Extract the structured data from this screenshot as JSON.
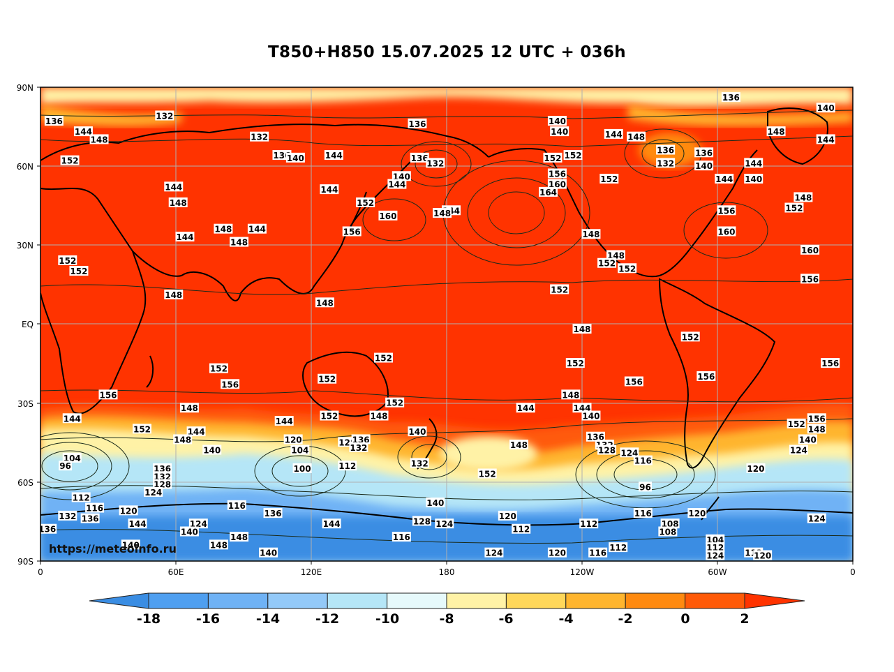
{
  "title": "T850+H850 15.07.2025 12 UTC + 036h",
  "watermark": "https://meteoinfo.ru",
  "lat_labels": [
    "90N",
    "60N",
    "30N",
    "EQ",
    "30S",
    "60S",
    "90S"
  ],
  "lon_labels": [
    "0",
    "60E",
    "120E",
    "180",
    "120W",
    "60W",
    "0"
  ],
  "colorbar": {
    "levels": [
      "-18",
      "-16",
      "-14",
      "-12",
      "-10",
      "-8",
      "-6",
      "-4",
      "-2",
      "0",
      "2"
    ],
    "colors": [
      "#3a8de3",
      "#4f9ff0",
      "#6fb2f5",
      "#93c9f8",
      "#b5e6f7",
      "#e6f9fb",
      "#fff2a6",
      "#ffd75a",
      "#ffb52e",
      "#ff8a10",
      "#ff5a08",
      "#ff3300"
    ]
  },
  "palette": {
    "warm": "#ff3300",
    "coast": "#000000",
    "grid": "#b0b0b0",
    "contour": "#1a2a1a"
  },
  "contour_labels": [
    {
      "t": "136",
      "lon": 6,
      "lat": 77
    },
    {
      "t": "144",
      "lon": 19,
      "lat": 73
    },
    {
      "t": "148",
      "lon": 26,
      "lat": 70
    },
    {
      "t": "152",
      "lon": 13,
      "lat": 62
    },
    {
      "t": "132",
      "lon": 55,
      "lat": 79
    },
    {
      "t": "132",
      "lon": 97,
      "lat": 71
    },
    {
      "t": "136",
      "lon": 107,
      "lat": 64
    },
    {
      "t": "140",
      "lon": 113,
      "lat": 63
    },
    {
      "t": "144",
      "lon": 130,
      "lat": 64
    },
    {
      "t": "136",
      "lon": 167,
      "lat": 76
    },
    {
      "t": "140",
      "lon": 229,
      "lat": 77
    },
    {
      "t": "140",
      "lon": 230,
      "lat": 73
    },
    {
      "t": "136",
      "lon": 306,
      "lat": 86
    },
    {
      "t": "140",
      "lon": 348,
      "lat": 82
    },
    {
      "t": "148",
      "lon": 326,
      "lat": 73
    },
    {
      "t": "144",
      "lon": 348,
      "lat": 70
    },
    {
      "t": "144",
      "lon": 254,
      "lat": 72
    },
    {
      "t": "148",
      "lon": 264,
      "lat": 71
    },
    {
      "t": "136",
      "lon": 168,
      "lat": 63
    },
    {
      "t": "132",
      "lon": 175,
      "lat": 61
    },
    {
      "t": "140",
      "lon": 160,
      "lat": 56
    },
    {
      "t": "144",
      "lon": 158,
      "lat": 53
    },
    {
      "t": "152",
      "lon": 144,
      "lat": 46
    },
    {
      "t": "160",
      "lon": 154,
      "lat": 41
    },
    {
      "t": "144",
      "lon": 182,
      "lat": 43
    },
    {
      "t": "148",
      "lon": 178,
      "lat": 42
    },
    {
      "t": "152",
      "lon": 227,
      "lat": 63
    },
    {
      "t": "152",
      "lon": 236,
      "lat": 64
    },
    {
      "t": "156",
      "lon": 229,
      "lat": 57
    },
    {
      "t": "160",
      "lon": 229,
      "lat": 53
    },
    {
      "t": "164",
      "lon": 225,
      "lat": 50
    },
    {
      "t": "148",
      "lon": 244,
      "lat": 34
    },
    {
      "t": "148",
      "lon": 255,
      "lat": 26
    },
    {
      "t": "152",
      "lon": 251,
      "lat": 23
    },
    {
      "t": "152",
      "lon": 260,
      "lat": 21
    },
    {
      "t": "152",
      "lon": 230,
      "lat": 13
    },
    {
      "t": "152",
      "lon": 252,
      "lat": 55
    },
    {
      "t": "132",
      "lon": 277,
      "lat": 61
    },
    {
      "t": "136",
      "lon": 277,
      "lat": 66
    },
    {
      "t": "136",
      "lon": 294,
      "lat": 65
    },
    {
      "t": "140",
      "lon": 294,
      "lat": 60
    },
    {
      "t": "144",
      "lon": 303,
      "lat": 55
    },
    {
      "t": "144",
      "lon": 316,
      "lat": 61
    },
    {
      "t": "140",
      "lon": 316,
      "lat": 55
    },
    {
      "t": "156",
      "lon": 304,
      "lat": 43
    },
    {
      "t": "160",
      "lon": 304,
      "lat": 35
    },
    {
      "t": "148",
      "lon": 338,
      "lat": 48
    },
    {
      "t": "152",
      "lon": 334,
      "lat": 44
    },
    {
      "t": "160",
      "lon": 341,
      "lat": 28
    },
    {
      "t": "156",
      "lon": 341,
      "lat": 17
    },
    {
      "t": "144",
      "lon": 59,
      "lat": 52
    },
    {
      "t": "148",
      "lon": 61,
      "lat": 46
    },
    {
      "t": "144",
      "lon": 128,
      "lat": 51
    },
    {
      "t": "144",
      "lon": 64,
      "lat": 33
    },
    {
      "t": "148",
      "lon": 81,
      "lat": 36
    },
    {
      "t": "144",
      "lon": 96,
      "lat": 36
    },
    {
      "t": "148",
      "lon": 88,
      "lat": 31
    },
    {
      "t": "156",
      "lon": 138,
      "lat": 35
    },
    {
      "t": "152",
      "lon": 12,
      "lat": 24
    },
    {
      "t": "152",
      "lon": 17,
      "lat": 20
    },
    {
      "t": "148",
      "lon": 59,
      "lat": 11
    },
    {
      "t": "148",
      "lon": 126,
      "lat": 8
    },
    {
      "t": "148",
      "lon": 240,
      "lat": -2
    },
    {
      "t": "152",
      "lon": 288,
      "lat": -5
    },
    {
      "t": "152",
      "lon": 79,
      "lat": -17
    },
    {
      "t": "156",
      "lon": 84,
      "lat": -23
    },
    {
      "t": "156",
      "lon": 30,
      "lat": -27
    },
    {
      "t": "152",
      "lon": 127,
      "lat": -21
    },
    {
      "t": "152",
      "lon": 152,
      "lat": -13
    },
    {
      "t": "152",
      "lon": 237,
      "lat": -15
    },
    {
      "t": "156",
      "lon": 263,
      "lat": -22
    },
    {
      "t": "156",
      "lon": 295,
      "lat": -20
    },
    {
      "t": "156",
      "lon": 350,
      "lat": -15
    },
    {
      "t": "152",
      "lon": 157,
      "lat": -30
    },
    {
      "t": "148",
      "lon": 66,
      "lat": -32
    },
    {
      "t": "144",
      "lon": 14,
      "lat": -36
    },
    {
      "t": "152",
      "lon": 45,
      "lat": -40
    },
    {
      "t": "144",
      "lon": 69,
      "lat": -41
    },
    {
      "t": "148",
      "lon": 63,
      "lat": -44
    },
    {
      "t": "140",
      "lon": 76,
      "lat": -48
    },
    {
      "t": "144",
      "lon": 108,
      "lat": -37
    },
    {
      "t": "152",
      "lon": 128,
      "lat": -35
    },
    {
      "t": "148",
      "lon": 150,
      "lat": -35
    },
    {
      "t": "120",
      "lon": 112,
      "lat": -44
    },
    {
      "t": "104",
      "lon": 115,
      "lat": -48
    },
    {
      "t": "128",
      "lon": 136,
      "lat": -45
    },
    {
      "t": "136",
      "lon": 142,
      "lat": -44
    },
    {
      "t": "132",
      "lon": 141,
      "lat": -47
    },
    {
      "t": "140",
      "lon": 167,
      "lat": -41
    },
    {
      "t": "112",
      "lon": 136,
      "lat": -54
    },
    {
      "t": "100",
      "lon": 116,
      "lat": -55
    },
    {
      "t": "132",
      "lon": 168,
      "lat": -53
    },
    {
      "t": "144",
      "lon": 215,
      "lat": -32
    },
    {
      "t": "148",
      "lon": 235,
      "lat": -27
    },
    {
      "t": "144",
      "lon": 240,
      "lat": -32
    },
    {
      "t": "140",
      "lon": 244,
      "lat": -35
    },
    {
      "t": "148",
      "lon": 212,
      "lat": -46
    },
    {
      "t": "152",
      "lon": 198,
      "lat": -57
    },
    {
      "t": "136",
      "lon": 246,
      "lat": -43
    },
    {
      "t": "132",
      "lon": 250,
      "lat": -46
    },
    {
      "t": "128",
      "lon": 251,
      "lat": -48
    },
    {
      "t": "124",
      "lon": 261,
      "lat": -49
    },
    {
      "t": "116",
      "lon": 267,
      "lat": -52
    },
    {
      "t": "96",
      "lon": 268,
      "lat": -62
    },
    {
      "t": "104",
      "lon": 14,
      "lat": -51
    },
    {
      "t": "96",
      "lon": 11,
      "lat": -54
    },
    {
      "t": "136",
      "lon": 54,
      "lat": -55
    },
    {
      "t": "132",
      "lon": 54,
      "lat": -58
    },
    {
      "t": "128",
      "lon": 54,
      "lat": -61
    },
    {
      "t": "124",
      "lon": 50,
      "lat": -64
    },
    {
      "t": "112",
      "lon": 18,
      "lat": -66
    },
    {
      "t": "116",
      "lon": 24,
      "lat": -70
    },
    {
      "t": "120",
      "lon": 39,
      "lat": -71
    },
    {
      "t": "132",
      "lon": 12,
      "lat": -73
    },
    {
      "t": "136",
      "lon": 22,
      "lat": -74
    },
    {
      "t": "144",
      "lon": 43,
      "lat": -76
    },
    {
      "t": "124",
      "lon": 70,
      "lat": -76
    },
    {
      "t": "140",
      "lon": 66,
      "lat": -79
    },
    {
      "t": "148",
      "lon": 88,
      "lat": -81
    },
    {
      "t": "148",
      "lon": 79,
      "lat": -84
    },
    {
      "t": "140",
      "lon": 40,
      "lat": -84
    },
    {
      "t": "136",
      "lon": 3,
      "lat": -78
    },
    {
      "t": "116",
      "lon": 87,
      "lat": -69
    },
    {
      "t": "136",
      "lon": 103,
      "lat": -72
    },
    {
      "t": "144",
      "lon": 129,
      "lat": -76
    },
    {
      "t": "140",
      "lon": 175,
      "lat": -68
    },
    {
      "t": "128",
      "lon": 169,
      "lat": -75
    },
    {
      "t": "124",
      "lon": 179,
      "lat": -76
    },
    {
      "t": "120",
      "lon": 207,
      "lat": -73
    },
    {
      "t": "112",
      "lon": 213,
      "lat": -78
    },
    {
      "t": "112",
      "lon": 243,
      "lat": -76
    },
    {
      "t": "116",
      "lon": 267,
      "lat": -72
    },
    {
      "t": "108",
      "lon": 279,
      "lat": -76
    },
    {
      "t": "108",
      "lon": 278,
      "lat": -79
    },
    {
      "t": "120",
      "lon": 291,
      "lat": -72
    },
    {
      "t": "104",
      "lon": 299,
      "lat": -82
    },
    {
      "t": "112",
      "lon": 299,
      "lat": -85
    },
    {
      "t": "124",
      "lon": 299,
      "lat": -88
    },
    {
      "t": "112",
      "lon": 316,
      "lat": -87
    },
    {
      "t": "120",
      "lon": 320,
      "lat": -88
    },
    {
      "t": "124",
      "lon": 336,
      "lat": -48
    },
    {
      "t": "120",
      "lon": 317,
      "lat": -55
    },
    {
      "t": "124",
      "lon": 344,
      "lat": -74
    },
    {
      "t": "140",
      "lon": 101,
      "lat": -87
    },
    {
      "t": "116",
      "lon": 160,
      "lat": -81
    },
    {
      "t": "124",
      "lon": 201,
      "lat": -87
    },
    {
      "t": "120",
      "lon": 229,
      "lat": -87
    },
    {
      "t": "116",
      "lon": 247,
      "lat": -87
    },
    {
      "t": "112",
      "lon": 256,
      "lat": -85
    },
    {
      "t": "152",
      "lon": 335,
      "lat": -38
    },
    {
      "t": "156",
      "lon": 344,
      "lat": -36
    },
    {
      "t": "148",
      "lon": 344,
      "lat": -40
    },
    {
      "t": "140",
      "lon": 340,
      "lat": -44
    }
  ]
}
